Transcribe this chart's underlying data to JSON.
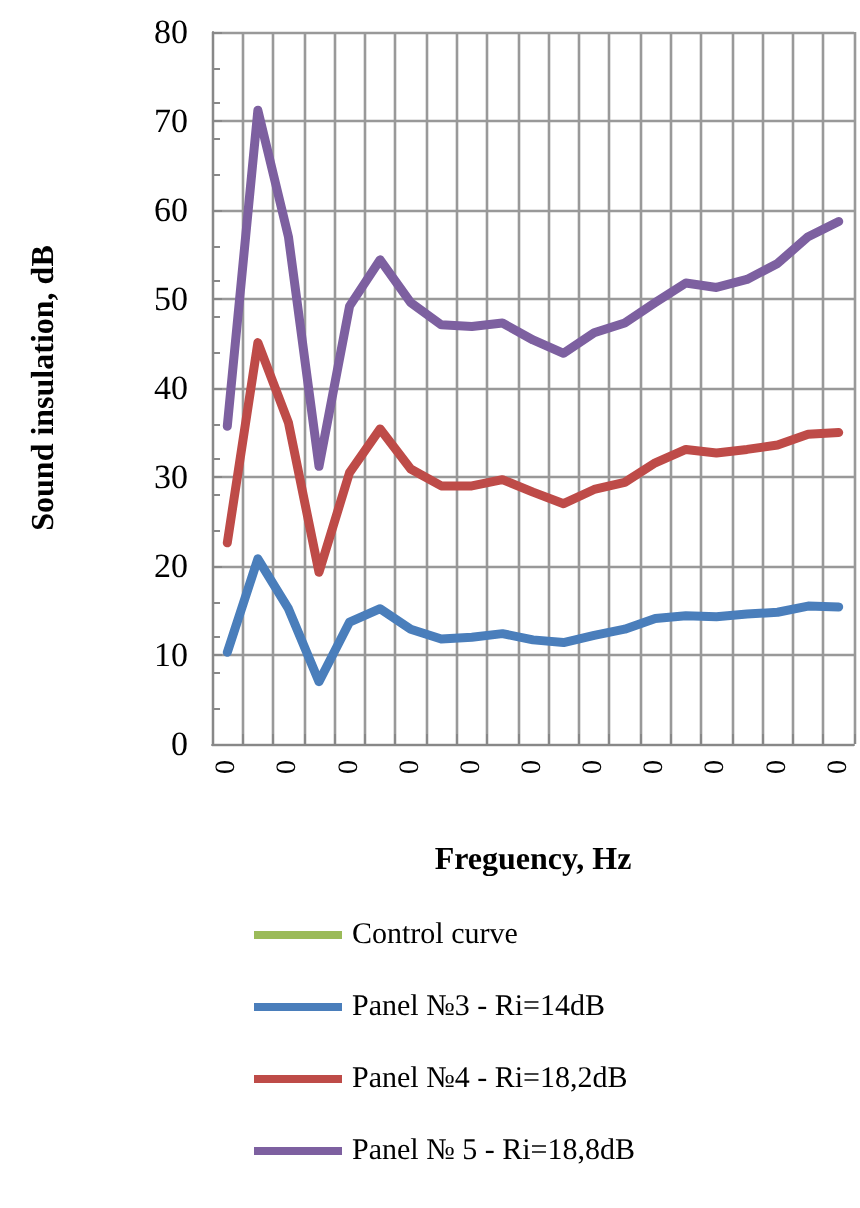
{
  "chart_data": {
    "type": "line",
    "xlabel": "Freguency, Hz",
    "ylabel": "Sound insulation, dB",
    "categories": [
      "0",
      null,
      "0",
      null,
      "0",
      null,
      "0",
      null,
      "0",
      null,
      "0",
      null,
      "0",
      null,
      "0",
      null,
      "0",
      null,
      "0",
      null,
      "0"
    ],
    "series": [
      {
        "name": "Control curve",
        "color": "#9bbb59",
        "values": [
          null,
          null,
          null,
          null,
          null,
          null,
          null,
          null,
          null,
          null,
          null,
          null,
          null,
          null,
          null,
          null,
          null,
          null,
          null,
          null,
          null
        ]
      },
      {
        "name": "Panel №3 - Ri=14dB",
        "color": "#4a7ebb",
        "values": [
          10.3,
          20.8,
          15.2,
          7.0,
          13.7,
          15.2,
          12.9,
          11.8,
          12.0,
          12.4,
          11.7,
          11.4,
          12.2,
          12.9,
          14.1,
          14.4,
          14.3,
          14.6,
          14.8,
          15.5,
          15.4
        ]
      },
      {
        "name": "Panel №4 - Ri=18,2dB",
        "color": "#be4b48",
        "values": [
          22.6,
          45.1,
          36.1,
          19.3,
          30.5,
          35.4,
          30.9,
          29.0,
          29.0,
          29.7,
          28.3,
          27.0,
          28.6,
          29.4,
          31.6,
          33.1,
          32.7,
          33.1,
          33.6,
          34.8,
          35.0
        ]
      },
      {
        "name": "Panel № 5 - Ri=18,8dB",
        "color": "#7d60a0",
        "values": [
          35.7,
          71.2,
          57.0,
          31.2,
          49.2,
          54.4,
          49.6,
          47.1,
          46.9,
          47.3,
          45.4,
          43.9,
          46.2,
          47.3,
          49.6,
          51.8,
          51.3,
          52.2,
          54.0,
          57.0,
          58.7
        ]
      }
    ],
    "ylim": [
      0,
      80
    ],
    "yticks": [
      0,
      10,
      20,
      30,
      40,
      50,
      60,
      70,
      80
    ],
    "grid": true,
    "legend": "bottom",
    "marker": "none",
    "line_style": "solid"
  }
}
